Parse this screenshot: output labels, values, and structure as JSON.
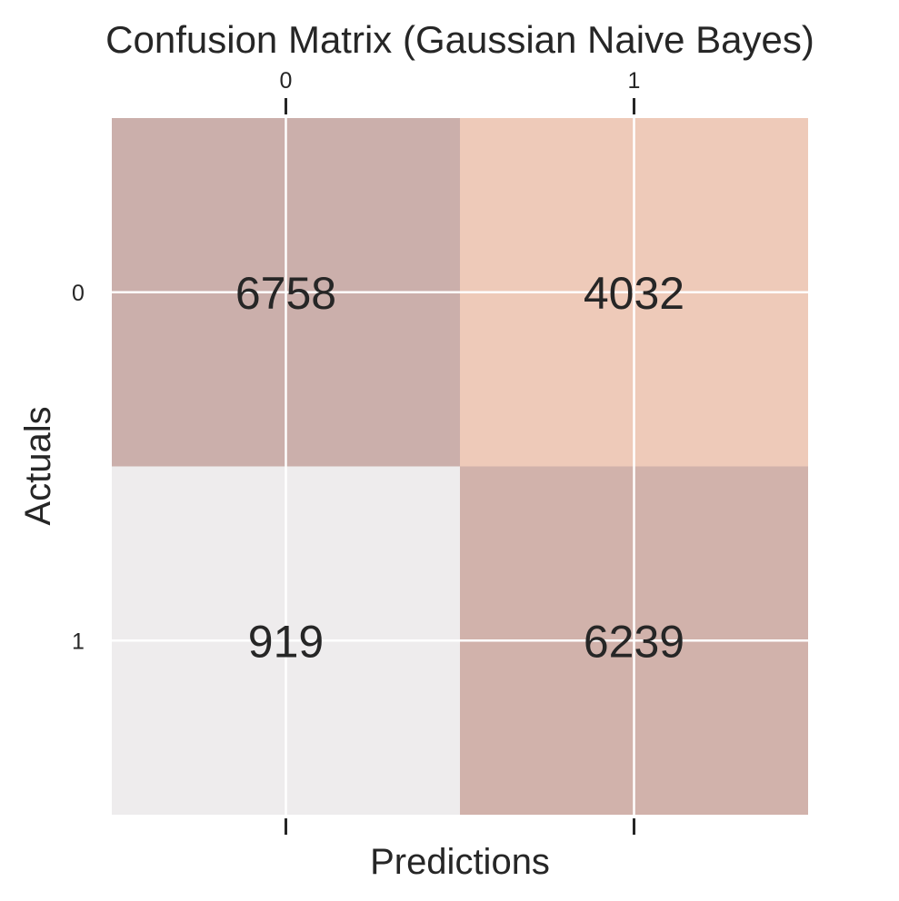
{
  "chart_data": {
    "type": "heatmap",
    "title": "Confusion Matrix (Gaussian Naive Bayes)",
    "xlabel": "Predictions",
    "ylabel": "Actuals",
    "x_categories": [
      "0",
      "1"
    ],
    "y_categories": [
      "0",
      "1"
    ],
    "values": [
      [
        6758,
        4032
      ],
      [
        919,
        6239
      ]
    ],
    "value_labels": [
      [
        "6758",
        "4032"
      ],
      [
        "919",
        "6239"
      ]
    ],
    "x_tick_position": "top",
    "grid": true,
    "colors": {
      "low": "#eeeced",
      "mid": "#eecab9",
      "high": "#cbafab",
      "grid": "#ffffff",
      "text": "#262626"
    },
    "cell_colors": [
      [
        "#cbafab",
        "#eecab9"
      ],
      [
        "#eeeced",
        "#d1b2ab"
      ]
    ]
  }
}
